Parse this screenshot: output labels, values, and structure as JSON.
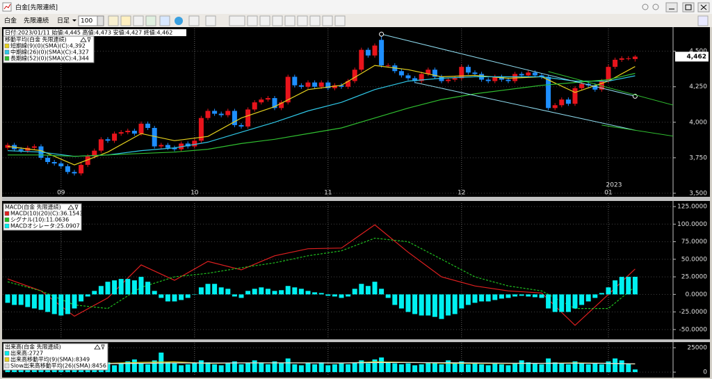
{
  "window": {
    "title": "白金[先限連続]",
    "menu": [
      "白金",
      "先限連続",
      "日足"
    ],
    "count": "100"
  },
  "chart_data": [
    {
      "type": "candlestick",
      "title": "日付:2023/01/11 始値:4,445 高値:4,473 安値:4,427 終値:4,462",
      "legend_title": "移動平均(白金 先限連続)",
      "categories": [
        null,
        null,
        null,
        null,
        null,
        null,
        null,
        null,
        "09",
        null,
        null,
        null,
        null,
        null,
        null,
        null,
        null,
        null,
        null,
        null,
        null,
        null,
        null,
        null,
        null,
        null,
        null,
        null,
        "10",
        null,
        null,
        null,
        null,
        null,
        null,
        null,
        null,
        null,
        null,
        null,
        null,
        null,
        null,
        null,
        null,
        null,
        null,
        null,
        "11",
        null,
        null,
        null,
        null,
        null,
        null,
        null,
        null,
        null,
        null,
        null,
        null,
        null,
        null,
        null,
        null,
        null,
        null,
        null,
        "12",
        null,
        null,
        null,
        null,
        null,
        null,
        null,
        null,
        null,
        null,
        null,
        null,
        null,
        null,
        null,
        null,
        null,
        null,
        null,
        null,
        null,
        "01",
        null,
        null,
        null,
        null
      ],
      "year_label": "2023",
      "open": [
        3820,
        3840,
        3810,
        3800,
        3820,
        3830,
        3750,
        3720,
        3710,
        3690,
        3650,
        3640,
        3700,
        3760,
        3800,
        3880,
        3870,
        3920,
        3930,
        3940,
        3920,
        3990,
        3960,
        3830,
        3840,
        3820,
        3810,
        3850,
        3830,
        3870,
        4030,
        4080,
        4060,
        4050,
        4080,
        3980,
        3970,
        4090,
        4140,
        4160,
        4170,
        4100,
        4140,
        4320,
        4260,
        4250,
        4280,
        4250,
        4280,
        4240,
        4260,
        4250,
        4290,
        4370,
        4510,
        4470,
        4580,
        4400,
        4400,
        4360,
        4330,
        4310,
        4290,
        4340,
        4370,
        4320,
        4290,
        4300,
        4310,
        4390,
        4350,
        4340,
        4300,
        4290,
        4320,
        4300,
        4290,
        4340,
        4330,
        4350,
        4330,
        4320,
        4100,
        4120,
        4160,
        4130,
        4240,
        4270,
        4260,
        4230,
        4290,
        4390,
        4440,
        4450,
        4445
      ],
      "high": [
        3855,
        3855,
        3825,
        3835,
        3845,
        3845,
        3765,
        3735,
        3725,
        3705,
        3665,
        3715,
        3775,
        3815,
        3895,
        3895,
        3935,
        3945,
        3955,
        3955,
        4005,
        4005,
        3975,
        3855,
        3855,
        3835,
        3865,
        3865,
        3885,
        4045,
        4095,
        4095,
        4075,
        4095,
        4095,
        3995,
        4105,
        4155,
        4175,
        4185,
        4185,
        4155,
        4335,
        4335,
        4275,
        4295,
        4295,
        4295,
        4295,
        4275,
        4275,
        4305,
        4385,
        4525,
        4525,
        4555,
        4620,
        4415,
        4415,
        4375,
        4345,
        4325,
        4355,
        4385,
        4385,
        4335,
        4315,
        4325,
        4405,
        4405,
        4365,
        4355,
        4315,
        4335,
        4335,
        4315,
        4355,
        4355,
        4365,
        4365,
        4345,
        4335,
        4135,
        4175,
        4175,
        4255,
        4285,
        4285,
        4275,
        4305,
        4405,
        4455,
        4465,
        4465,
        4473
      ],
      "low": [
        3805,
        3795,
        3785,
        3785,
        3805,
        3735,
        3705,
        3695,
        3675,
        3635,
        3625,
        3625,
        3685,
        3745,
        3785,
        3855,
        3855,
        3905,
        3915,
        3905,
        3905,
        3945,
        3815,
        3815,
        3805,
        3795,
        3795,
        3815,
        3815,
        3855,
        4015,
        4045,
        4035,
        4035,
        3965,
        3955,
        3955,
        4075,
        4125,
        4145,
        4085,
        4085,
        4125,
        4245,
        4235,
        4235,
        4235,
        4235,
        4225,
        4225,
        4235,
        4235,
        4275,
        4355,
        4455,
        4455,
        4385,
        4385,
        4345,
        4315,
        4295,
        4275,
        4275,
        4325,
        4305,
        4275,
        4275,
        4285,
        4295,
        4335,
        4325,
        4285,
        4275,
        4275,
        4285,
        4275,
        4275,
        4315,
        4315,
        4315,
        4305,
        4085,
        4085,
        4105,
        4115,
        4115,
        4225,
        4245,
        4215,
        4215,
        4275,
        4375,
        4425,
        4435,
        4427
      ],
      "close": [
        3840,
        3810,
        3800,
        3820,
        3830,
        3750,
        3720,
        3710,
        3690,
        3650,
        3640,
        3700,
        3760,
        3800,
        3880,
        3870,
        3920,
        3930,
        3940,
        3920,
        3990,
        3960,
        3830,
        3840,
        3820,
        3810,
        3850,
        3830,
        3870,
        4030,
        4080,
        4060,
        4050,
        4080,
        3980,
        3970,
        4090,
        4140,
        4160,
        4170,
        4100,
        4140,
        4320,
        4260,
        4250,
        4280,
        4250,
        4280,
        4240,
        4260,
        4250,
        4290,
        4370,
        4510,
        4470,
        4540,
        4400,
        4400,
        4360,
        4330,
        4310,
        4290,
        4340,
        4370,
        4320,
        4290,
        4300,
        4310,
        4390,
        4350,
        4340,
        4300,
        4290,
        4320,
        4300,
        4290,
        4340,
        4330,
        4350,
        4330,
        4320,
        4100,
        4120,
        4160,
        4130,
        4240,
        4270,
        4260,
        4230,
        4290,
        4390,
        4440,
        4450,
        4450,
        4462
      ],
      "up_color": "#e8141c",
      "down_color": "#1e8fff",
      "last_price_label": "4,462",
      "ylim": [
        3480,
        4660
      ],
      "yticks": [
        {
          "value": 3500,
          "label": "3,500"
        },
        {
          "value": 3750,
          "label": "3,750"
        },
        {
          "value": 4000,
          "label": "4,000"
        },
        {
          "value": 4250,
          "label": "4,250"
        },
        {
          "value": 4500,
          "label": "4,500"
        }
      ],
      "grid": true,
      "series": [
        {
          "name": "短期線(9)(0)(SMA)(C):4,392",
          "color": "#e6d21e",
          "x": [
            0,
            5,
            10,
            15,
            20,
            25,
            30,
            35,
            40,
            45,
            50,
            55,
            60,
            65,
            70,
            75,
            80,
            85,
            90,
            94
          ],
          "values": [
            3830,
            3800,
            3700,
            3790,
            3920,
            3870,
            3900,
            4030,
            4110,
            4230,
            4260,
            4400,
            4370,
            4320,
            4330,
            4310,
            4320,
            4210,
            4290,
            4392
          ]
        },
        {
          "name": "中期線(26)(0)(SMA)(C):4,327",
          "color": "#2fc8e8",
          "x": [
            0,
            5,
            10,
            15,
            20,
            25,
            30,
            35,
            40,
            45,
            50,
            55,
            60,
            65,
            70,
            75,
            80,
            85,
            90,
            94
          ],
          "values": [
            3800,
            3790,
            3760,
            3770,
            3800,
            3820,
            3860,
            3930,
            4000,
            4080,
            4140,
            4230,
            4290,
            4310,
            4320,
            4320,
            4320,
            4290,
            4290,
            4327
          ]
        },
        {
          "name": "長期線(52)(0)(SMA)(C):4,344",
          "color": "#30c030",
          "x": [
            0,
            5,
            10,
            15,
            20,
            25,
            30,
            35,
            40,
            45,
            50,
            55,
            60,
            65,
            70,
            75,
            80,
            85,
            90,
            94
          ],
          "values": [
            3770,
            3770,
            3760,
            3770,
            3780,
            3790,
            3810,
            3850,
            3880,
            3920,
            3960,
            4030,
            4100,
            4160,
            4200,
            4230,
            4260,
            4280,
            4300,
            4344
          ]
        }
      ],
      "trend_lines": [
        {
          "color": "#8fdcf0",
          "x": [
            56,
            94
          ],
          "values": [
            4620,
            4183
          ]
        },
        {
          "color": "#8fdcf0",
          "x": [
            61,
            94
          ],
          "values": [
            4280,
            3944
          ]
        },
        {
          "color": "#30c030",
          "x": [
            81,
            100
          ],
          "values": [
            4357,
            4117
          ]
        },
        {
          "color": "#30c030",
          "x": [
            89,
            100
          ],
          "values": [
            3980,
            3900
          ]
        }
      ]
    },
    {
      "type": "macd",
      "legend_title": "MACD(白金 先限連続)",
      "ylim": [
        -63,
        130
      ],
      "yticks": [
        {
          "value": -50,
          "label": "-50.0000"
        },
        {
          "value": -25,
          "label": "-25.0000"
        },
        {
          "value": 0,
          "label": "0.0000"
        },
        {
          "value": 25,
          "label": "25.0000"
        },
        {
          "value": 50,
          "label": "50.0000"
        },
        {
          "value": 75,
          "label": "75.0000"
        },
        {
          "value": 100,
          "label": "100.0000"
        },
        {
          "value": 125,
          "label": "125.0000"
        }
      ],
      "series": [
        {
          "name": "MACD(10)(20)(C):36.1543",
          "color": "#e02020",
          "x": [
            0,
            5,
            10,
            15,
            20,
            25,
            30,
            35,
            40,
            45,
            50,
            55,
            60,
            65,
            70,
            75,
            80,
            85,
            90,
            94
          ],
          "values": [
            22,
            5,
            -31,
            -5,
            42,
            20,
            47,
            35,
            55,
            65,
            66,
            99,
            60,
            25,
            12,
            5,
            2,
            -44,
            0,
            36.1543
          ]
        },
        {
          "name": "シグナル(10):11.0636",
          "color": "#20c020",
          "dashed": true,
          "x": [
            0,
            5,
            10,
            15,
            20,
            25,
            30,
            35,
            40,
            45,
            50,
            55,
            60,
            65,
            70,
            75,
            80,
            85,
            90,
            94
          ],
          "values": [
            18,
            5,
            -15,
            -20,
            10,
            25,
            30,
            38,
            45,
            55,
            62,
            80,
            75,
            50,
            25,
            12,
            5,
            -20,
            -20,
            11.0636
          ]
        },
        {
          "name": "MACDオシレータ:25.0907",
          "color": "#00f0f0",
          "bars": true,
          "values": [
            -12,
            -15,
            -15,
            -18,
            -20,
            -22,
            -25,
            -28,
            -30,
            -28,
            -20,
            -10,
            -3,
            5,
            12,
            18,
            20,
            22,
            22,
            20,
            25,
            18,
            5,
            -5,
            -10,
            -10,
            -8,
            -5,
            0,
            10,
            15,
            15,
            10,
            8,
            -3,
            -5,
            5,
            8,
            10,
            8,
            5,
            6,
            12,
            10,
            8,
            5,
            3,
            2,
            -2,
            -3,
            -5,
            -3,
            8,
            15,
            12,
            18,
            8,
            -5,
            -15,
            -20,
            -25,
            -28,
            -30,
            -30,
            -32,
            -35,
            -30,
            -28,
            -20,
            -15,
            -12,
            -10,
            -10,
            -8,
            -6,
            -5,
            -3,
            -2,
            -3,
            -4,
            -5,
            -20,
            -25,
            -25,
            -25,
            -20,
            -15,
            -10,
            -5,
            2,
            10,
            20,
            25,
            25,
            25.0907
          ]
        }
      ]
    },
    {
      "type": "volume",
      "legend_title": "出来高(白金 先限連続)",
      "ylim": [
        -3500,
        30000
      ],
      "yticks": [
        0,
        25000
      ],
      "series": [
        {
          "name": "出来高:2727",
          "color": "#00f0f0",
          "bars": true,
          "values": [
            9000,
            6000,
            7000,
            8000,
            12000,
            7000,
            9000,
            8000,
            10000,
            9000,
            11000,
            8000,
            7000,
            9000,
            8000,
            10000,
            7000,
            9000,
            11000,
            13000,
            9000,
            8000,
            12000,
            20000,
            10000,
            9000,
            7000,
            8000,
            9000,
            12000,
            10000,
            8000,
            7000,
            9000,
            11000,
            8000,
            9000,
            12000,
            10000,
            8000,
            11000,
            9000,
            14000,
            8000,
            7000,
            9000,
            8000,
            10000,
            7000,
            8000,
            9000,
            8000,
            10000,
            12000,
            9000,
            13000,
            15000,
            10000,
            9000,
            8000,
            9000,
            7000,
            8000,
            10000,
            9000,
            8000,
            12000,
            9000,
            11000,
            8000,
            9000,
            8000,
            7000,
            9000,
            8000,
            7000,
            9000,
            12000,
            10000,
            9000,
            8000,
            14000,
            10000,
            9000,
            8000,
            11000,
            9000,
            8000,
            9000,
            8000,
            11000,
            14000,
            12000,
            9000,
            2727
          ]
        },
        {
          "name": "出来高移動平均(9)(SMA):8349",
          "color": "#e6d21e",
          "x": [
            0,
            5,
            10,
            15,
            20,
            25,
            30,
            35,
            40,
            45,
            50,
            55,
            60,
            65,
            70,
            75,
            80,
            85,
            90,
            94
          ],
          "values": [
            8500,
            8200,
            8600,
            9000,
            10000,
            10500,
            9000,
            9500,
            9500,
            9500,
            9200,
            10500,
            10000,
            9200,
            9000,
            8800,
            9000,
            9400,
            9000,
            8349
          ]
        },
        {
          "name": "Slow出来高移動平均(26)(SMA):8456",
          "color": "#e0e0e0",
          "x": [
            0,
            5,
            10,
            15,
            20,
            25,
            30,
            35,
            40,
            45,
            50,
            55,
            60,
            65,
            70,
            75,
            80,
            85,
            90,
            94
          ],
          "values": [
            8300,
            8400,
            8500,
            8700,
            9000,
            9300,
            9300,
            9400,
            9500,
            9400,
            9400,
            9700,
            9800,
            9700,
            9400,
            9200,
            9000,
            9100,
            9000,
            8456
          ]
        }
      ]
    }
  ]
}
